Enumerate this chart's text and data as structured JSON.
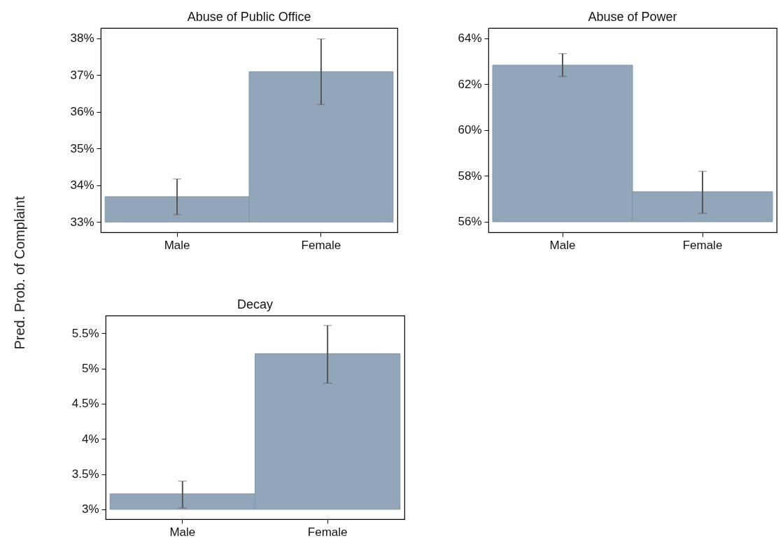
{
  "chart_data": [
    {
      "type": "bar",
      "title": "Abuse of Public Office",
      "ylabel": "Pred. Prob. of Complaint",
      "categories": [
        "Male",
        "Female"
      ],
      "base": [
        33,
        33
      ],
      "values": [
        0.69,
        4.09
      ],
      "errors": [
        [
          33.2,
          34.17
        ],
        [
          36.2,
          37.98
        ]
      ],
      "color": "#93a6b9",
      "ylim": [
        32.72,
        38.28
      ],
      "yticks": [
        {
          "value": 33,
          "label": "33%"
        },
        {
          "value": 34,
          "label": "34%"
        },
        {
          "value": 35,
          "label": "35%"
        },
        {
          "value": 36,
          "label": "36%"
        },
        {
          "value": 37,
          "label": "37%"
        },
        {
          "value": 38,
          "label": "38%"
        }
      ],
      "grid": false
    },
    {
      "type": "bar",
      "title": "Abuse of Power",
      "categories": [
        "Male",
        "Female"
      ],
      "base": [
        56,
        56
      ],
      "values": [
        6.83,
        1.31
      ],
      "errors": [
        [
          62.34,
          63.33
        ],
        [
          56.37,
          58.2
        ]
      ],
      "color": "#93a6b9",
      "ylim": [
        55.54,
        64.45
      ],
      "yticks": [
        {
          "value": 56,
          "label": "56%"
        },
        {
          "value": 58,
          "label": "58%"
        },
        {
          "value": 60,
          "label": "60%"
        },
        {
          "value": 62,
          "label": "62%"
        },
        {
          "value": 64,
          "label": "64%"
        }
      ],
      "grid": false
    },
    {
      "type": "bar",
      "title": "Decay",
      "categories": [
        "Male",
        "Female"
      ],
      "base": [
        3,
        3
      ],
      "values": [
        0.22,
        2.21
      ],
      "errors": [
        [
          3.02,
          3.4
        ],
        [
          4.79,
          5.61
        ]
      ],
      "color": "#93a6b9",
      "ylim": [
        2.86,
        5.75
      ],
      "yticks": [
        {
          "value": 3,
          "label": "3%"
        },
        {
          "value": 3.5,
          "label": "3.5%"
        },
        {
          "value": 4,
          "label": "4%"
        },
        {
          "value": 4.5,
          "label": "4.5%"
        },
        {
          "value": 5,
          "label": "5%"
        },
        {
          "value": 5.5,
          "label": "5.5%"
        }
      ],
      "grid": false
    }
  ]
}
